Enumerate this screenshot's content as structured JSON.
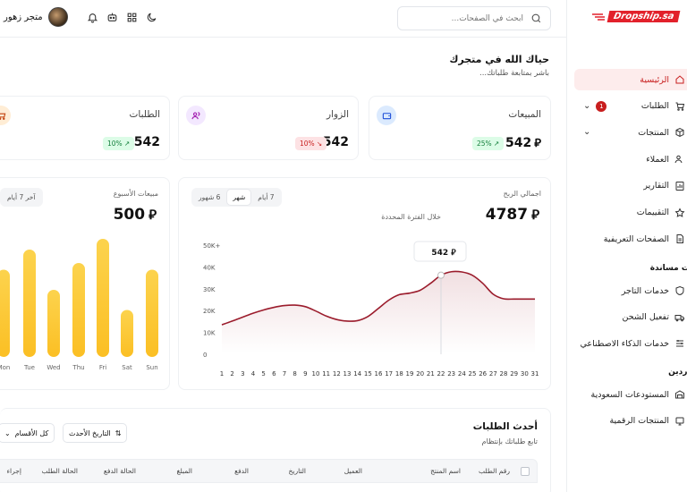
{
  "header": {
    "store_name": "متجر زهور",
    "search_placeholder": "ابحث في الصفحات..."
  },
  "logo": {
    "text": "Dropship.sa"
  },
  "sidebar": {
    "section_main": "ة",
    "items": [
      {
        "label": "الرئيسية",
        "icon": "home-icon",
        "active": true
      },
      {
        "label": "الطلبات",
        "icon": "cart-icon",
        "badge": "1",
        "chevron": true
      },
      {
        "label": "المنتجات",
        "icon": "package-icon",
        "chevron": true
      },
      {
        "label": "العملاء",
        "icon": "users-icon"
      },
      {
        "label": "التقارير",
        "icon": "report-icon"
      },
      {
        "label": "التقييمات",
        "icon": "star-icon"
      },
      {
        "label": "الصفحات التعريفية",
        "icon": "page-icon"
      }
    ],
    "section_support": "ات مساندة",
    "support_items": [
      {
        "label": "خدمات التاجر",
        "icon": "shield-icon"
      },
      {
        "label": "تفعيل الشحن",
        "icon": "truck-icon"
      },
      {
        "label": "خدمات الذكاء الاصطناعي",
        "icon": "ai-icon"
      }
    ],
    "section_suppliers": "وردين",
    "supplier_items": [
      {
        "label": "المستودعات السعودية",
        "icon": "warehouse-icon"
      },
      {
        "label": "المنتجات الرقمية",
        "icon": "digital-icon"
      }
    ]
  },
  "greeting": {
    "title": "حياك الله في متجرك",
    "subtitle": "باشر بمتابعة طلباتك..."
  },
  "stats": [
    {
      "title": "المبيعات",
      "value": "542",
      "currency": true,
      "change": "25%",
      "trend": "up"
    },
    {
      "title": "الزوار",
      "value": "542",
      "currency": false,
      "change": "10%",
      "trend": "down"
    },
    {
      "title": "الطلبات",
      "value": "542",
      "currency": false,
      "change": "10%",
      "trend": "up"
    }
  ],
  "profit": {
    "label": "اجمالي الربح",
    "value": "4787",
    "period_label": "خلال الفترة المحددة",
    "tabs": [
      "7 أيام",
      "شهر",
      "6 شهور"
    ],
    "active_tab": 1,
    "tooltip": "542"
  },
  "weekly": {
    "label": "مبيعات الأسبوع",
    "value": "500",
    "button": "آخر 7 أيام"
  },
  "chart_data": [
    {
      "type": "area",
      "x": [
        1,
        2,
        3,
        4,
        5,
        6,
        7,
        8,
        9,
        10,
        11,
        12,
        13,
        14,
        15,
        16,
        17,
        18,
        19,
        20,
        21,
        22,
        23,
        24,
        25,
        26,
        27,
        28,
        29,
        30,
        31
      ],
      "series": [
        {
          "values": [
            13500,
            15200,
            17000,
            18800,
            20300,
            21500,
            22300,
            22500,
            21800,
            19800,
            17500,
            15900,
            15200,
            15400,
            17300,
            21000,
            24800,
            27300,
            28000,
            29300,
            32500,
            36200,
            37800,
            37700,
            36200,
            32500,
            27500,
            25400,
            25300,
            25300,
            25300
          ]
        }
      ],
      "y_tick_labels": [
        "0",
        "10K",
        "20K",
        "30K",
        "40K",
        "50K+"
      ],
      "ylim": [
        0,
        50000
      ],
      "highlight": {
        "x": 22,
        "label": "542"
      },
      "color": "#9b1c2c"
    },
    {
      "type": "bar",
      "categories": [
        "Mon",
        "Tue",
        "Wed",
        "Thu",
        "Fri",
        "Sat",
        "Sun"
      ],
      "values": [
        65,
        80,
        50,
        70,
        88,
        35,
        65
      ],
      "ylim": [
        0,
        100
      ],
      "color": "#fbbf24"
    }
  ],
  "orders": {
    "title": "أحدث الطلبات",
    "subtitle": "تابع طلباتك بإنتظام",
    "sort_button": "التاريخ الأحدث",
    "category_button": "كل الأقسام",
    "columns": [
      "رقم الطلب",
      "اسم المنتج",
      "العميل",
      "التاريخ",
      "الدفع",
      "المبلغ",
      "الحالة الدفع",
      "الحالة الطلب",
      "إجراء"
    ]
  }
}
